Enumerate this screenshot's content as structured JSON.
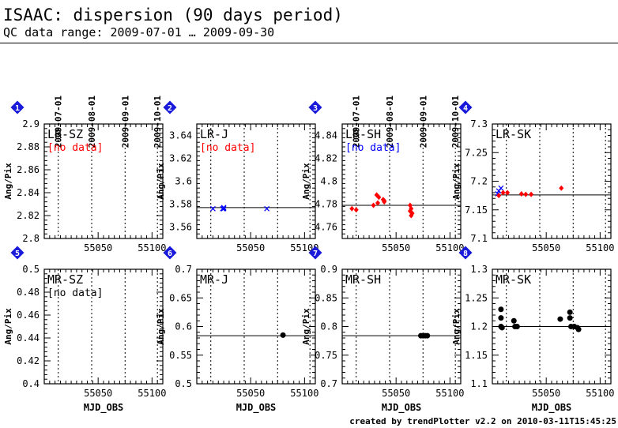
{
  "header": {
    "title": "ISAAC: dispersion (90 days period)",
    "subtitle": "QC data range: 2009-07-01 … 2009-09-30"
  },
  "footer": "created by trendPlotter v2.2 on 2010-03-11T15:45:25",
  "colors": {
    "red": "#ff0000",
    "blue": "#0000ff",
    "black": "#000000",
    "badge": "#1a1adb"
  },
  "chart_data": [
    {
      "type": "scatter",
      "badge": "1",
      "label": "LR-SZ",
      "note": "[no data]",
      "note_color": "#ff0000",
      "ylabel": "Ang/Pix",
      "xlabel": "",
      "xlim": [
        55000,
        55110
      ],
      "ylim": [
        2.8,
        2.9
      ],
      "yticks": [
        2.8,
        2.82,
        2.84,
        2.86,
        2.88,
        2.9
      ],
      "xticks": [
        55050,
        55100
      ],
      "date_ticks": [
        "2009-07-01",
        "2009-08-01",
        "2009-09-01",
        "2009-10-01"
      ],
      "reference": null,
      "series": []
    },
    {
      "type": "scatter",
      "badge": "2",
      "label": "LR-J",
      "note": "[no data]",
      "note_color": "#ff0000",
      "ylabel": "Ang/Pix",
      "xlabel": "",
      "xlim": [
        55000,
        55110
      ],
      "ylim": [
        3.55,
        3.65
      ],
      "yticks": [
        3.56,
        3.58,
        3.6,
        3.62,
        3.64
      ],
      "xticks": [
        55050,
        55100
      ],
      "date_ticks": [],
      "reference": 3.577,
      "series": [
        {
          "marker": "x",
          "color": "#0000ff",
          "x": [
            55015,
            55024,
            55025,
            55025,
            55065
          ],
          "y": [
            3.576,
            3.576,
            3.577,
            3.576,
            3.576
          ]
        }
      ]
    },
    {
      "type": "scatter",
      "badge": "3",
      "label": "LR-SH",
      "note": "[no data]",
      "note_color": "#0000ff",
      "ylabel": "Ang/Pix",
      "xlabel": "",
      "xlim": [
        55000,
        55110
      ],
      "ylim": [
        4.75,
        4.85
      ],
      "yticks": [
        4.76,
        4.78,
        4.8,
        4.82,
        4.84
      ],
      "xticks": [
        55050,
        55100
      ],
      "date_ticks": [
        "2009-07-01",
        "2009-08-01",
        "2009-09-01",
        "2009-10-01"
      ],
      "reference": 4.779,
      "series": [
        {
          "marker": "diamond",
          "color": "#ff0000",
          "x": [
            55009,
            55013,
            55029,
            55032,
            55033,
            55034,
            55038,
            55039,
            55039,
            55063,
            55063,
            55064,
            55064,
            55065
          ],
          "y": [
            4.776,
            4.775,
            4.779,
            4.788,
            4.781,
            4.786,
            4.784,
            4.782,
            4.783,
            4.779,
            4.774,
            4.776,
            4.77,
            4.772
          ]
        }
      ]
    },
    {
      "type": "scatter",
      "badge": "4",
      "label": "LR-SK",
      "note": "",
      "note_color": "#000000",
      "ylabel": "Ang/Pix",
      "xlabel": "",
      "xlim": [
        55000,
        55110
      ],
      "ylim": [
        7.1,
        7.3
      ],
      "yticks": [
        7.1,
        7.15,
        7.2,
        7.25,
        7.3
      ],
      "xticks": [
        55050,
        55100
      ],
      "date_ticks": [],
      "reference": 7.176,
      "series": [
        {
          "marker": "x",
          "color": "#0000ff",
          "x": [
            55005,
            55006,
            55008
          ],
          "y": [
            7.178,
            7.183,
            7.188
          ]
        },
        {
          "marker": "diamond",
          "color": "#ff0000",
          "x": [
            55006,
            55010,
            55014,
            55027,
            55031,
            55036,
            55064
          ],
          "y": [
            7.175,
            7.18,
            7.18,
            7.178,
            7.177,
            7.177,
            7.188
          ]
        }
      ]
    },
    {
      "type": "scatter",
      "badge": "5",
      "label": "MR-SZ",
      "note": "[no data]",
      "note_color": "#000000",
      "ylabel": "Ang/Pix",
      "xlabel": "MJD_OBS",
      "xlim": [
        55000,
        55110
      ],
      "ylim": [
        0.4,
        0.5
      ],
      "yticks": [
        0.4,
        0.42,
        0.44,
        0.46,
        0.48,
        0.5
      ],
      "xticks": [
        55050,
        55100
      ],
      "date_ticks": [],
      "reference": null,
      "series": []
    },
    {
      "type": "scatter",
      "badge": "6",
      "label": "MR-J",
      "note": "",
      "note_color": "#000000",
      "ylabel": "Ang/Pix",
      "xlabel": "MJD_OBS",
      "xlim": [
        55000,
        55110
      ],
      "ylim": [
        0.5,
        0.7
      ],
      "yticks": [
        0.5,
        0.55,
        0.6,
        0.65,
        0.7
      ],
      "xticks": [
        55050,
        55100
      ],
      "date_ticks": [],
      "reference": 0.584,
      "series": [
        {
          "marker": "dot",
          "color": "#000000",
          "x": [
            55080
          ],
          "y": [
            0.585
          ]
        }
      ]
    },
    {
      "type": "scatter",
      "badge": "7",
      "label": "MR-SH",
      "note": "",
      "note_color": "#000000",
      "ylabel": "Ang/Pix",
      "xlabel": "MJD_OBS",
      "xlim": [
        55000,
        55110
      ],
      "ylim": [
        0.7,
        0.9
      ],
      "yticks": [
        0.7,
        0.75,
        0.8,
        0.85,
        0.9
      ],
      "xticks": [
        55050,
        55100
      ],
      "date_ticks": [],
      "reference": 0.784,
      "series": [
        {
          "marker": "dot",
          "color": "#000000",
          "x": [
            55073,
            55075,
            55077,
            55079
          ],
          "y": [
            0.784,
            0.784,
            0.784,
            0.784
          ]
        }
      ]
    },
    {
      "type": "scatter",
      "badge": "8",
      "label": "MR-SK",
      "note": "",
      "note_color": "#000000",
      "ylabel": "Ang/Pix",
      "xlabel": "MJD_OBS",
      "xlim": [
        55000,
        55110
      ],
      "ylim": [
        1.1,
        1.3
      ],
      "yticks": [
        1.1,
        1.15,
        1.2,
        1.25,
        1.3
      ],
      "xticks": [
        55050,
        55100
      ],
      "date_ticks": [],
      "reference": 1.2,
      "series": [
        {
          "marker": "dot",
          "color": "#000000",
          "x": [
            55008,
            55008,
            55008,
            55009,
            55020,
            55021,
            55023,
            55063,
            55072,
            55072,
            55073,
            55076,
            55079,
            55080
          ],
          "y": [
            1.23,
            1.215,
            1.2,
            1.198,
            1.21,
            1.2,
            1.2,
            1.213,
            1.225,
            1.215,
            1.2,
            1.2,
            1.198,
            1.195
          ]
        }
      ]
    }
  ]
}
